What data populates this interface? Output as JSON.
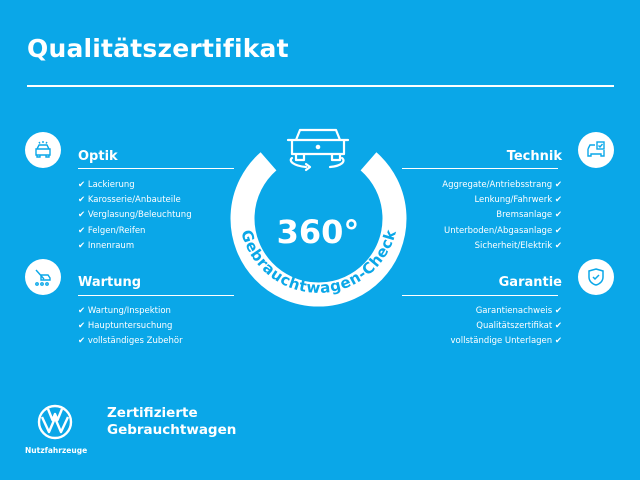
{
  "title": "Qualitätszertifikat",
  "center": {
    "big": "360°",
    "arc": "Gebrauchtwagen-Check"
  },
  "sections": {
    "optik": {
      "heading": "Optik",
      "icon": "car-front-icon",
      "items": [
        "Lackierung",
        "Karosserie/Anbauteile",
        "Verglasung/Beleuchtung",
        "Felgen/Reifen",
        "Innenraum"
      ]
    },
    "wartung": {
      "heading": "Wartung",
      "icon": "service-tools-icon",
      "items": [
        "Wartung/Inspektion",
        "Hauptuntersuchung",
        "vollständiges Zubehör"
      ]
    },
    "technik": {
      "heading": "Technik",
      "icon": "car-checklist-icon",
      "items": [
        "Aggregate/Antriebsstrang",
        "Lenkung/Fahrwerk",
        "Bremsanlage",
        "Unterboden/Abgasanlage",
        "Sicherheit/Elektrik"
      ]
    },
    "garantie": {
      "heading": "Garantie",
      "icon": "shield-check-icon",
      "items": [
        "Garantienachweis",
        "Qualitätszertifikat",
        "vollständige Unterlagen"
      ]
    }
  },
  "check": "✔",
  "footer": {
    "line1": "Zertifizierte",
    "line2": "Gebrauchtwagen",
    "logo_text": "Nutzfahrzeuge"
  },
  "colors": {
    "background": "#0aa7e8",
    "foreground": "#ffffff"
  }
}
